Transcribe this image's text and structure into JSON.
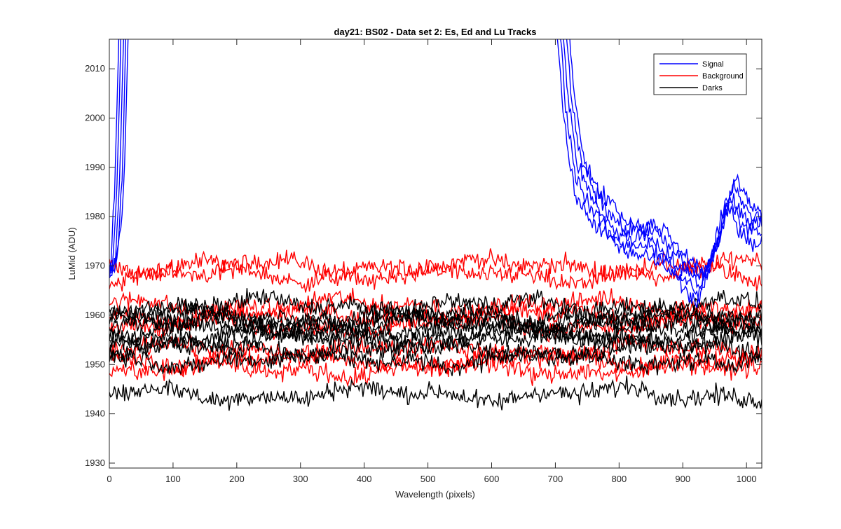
{
  "chart_data": {
    "type": "line",
    "title": "day21: BS02 - Data set 2: Es, Ed and Lu Tracks",
    "xlabel": "Wavelength (pixels)",
    "ylabel": "LuMid (ADU)",
    "xlim": [
      0,
      1024
    ],
    "ylim": [
      1929,
      2016
    ],
    "xticks": [
      0,
      100,
      200,
      300,
      400,
      500,
      600,
      700,
      800,
      900,
      1000
    ],
    "yticks": [
      1930,
      1940,
      1950,
      1960,
      1970,
      1980,
      1990,
      2000,
      2010
    ],
    "grid": false,
    "legend_position": "top-right",
    "colors": {
      "Signal": "#0000ff",
      "Background": "#ff0000",
      "Darks": "#000000"
    },
    "legend": [
      "Signal",
      "Background",
      "Darks"
    ],
    "series": [
      {
        "name": "Signal",
        "group": "Signal",
        "traces": 5,
        "approx_points": [
          [
            0,
            1966
          ],
          [
            10,
            1972
          ],
          [
            17,
            1990
          ],
          [
            25,
            2030
          ],
          [
            650,
            2030
          ],
          [
            705,
            2030
          ],
          [
            720,
            2005
          ],
          [
            735,
            1990
          ],
          [
            760,
            1982
          ],
          [
            800,
            1977
          ],
          [
            850,
            1975
          ],
          [
            900,
            1970
          ],
          [
            930,
            1966
          ],
          [
            950,
            1972
          ],
          [
            975,
            1985
          ],
          [
            1000,
            1980
          ],
          [
            1024,
            1978
          ]
        ]
      },
      {
        "name": "Background",
        "group": "Background",
        "levels": [
          1970,
          1968,
          1962,
          1960,
          1958,
          1953,
          1951,
          1949
        ],
        "noise": 1.2
      },
      {
        "name": "Darks",
        "group": "Darks",
        "levels": [
          1962,
          1960,
          1959,
          1958,
          1957,
          1956,
          1955,
          1953,
          1951,
          1944
        ],
        "noise": 1.2
      }
    ]
  }
}
